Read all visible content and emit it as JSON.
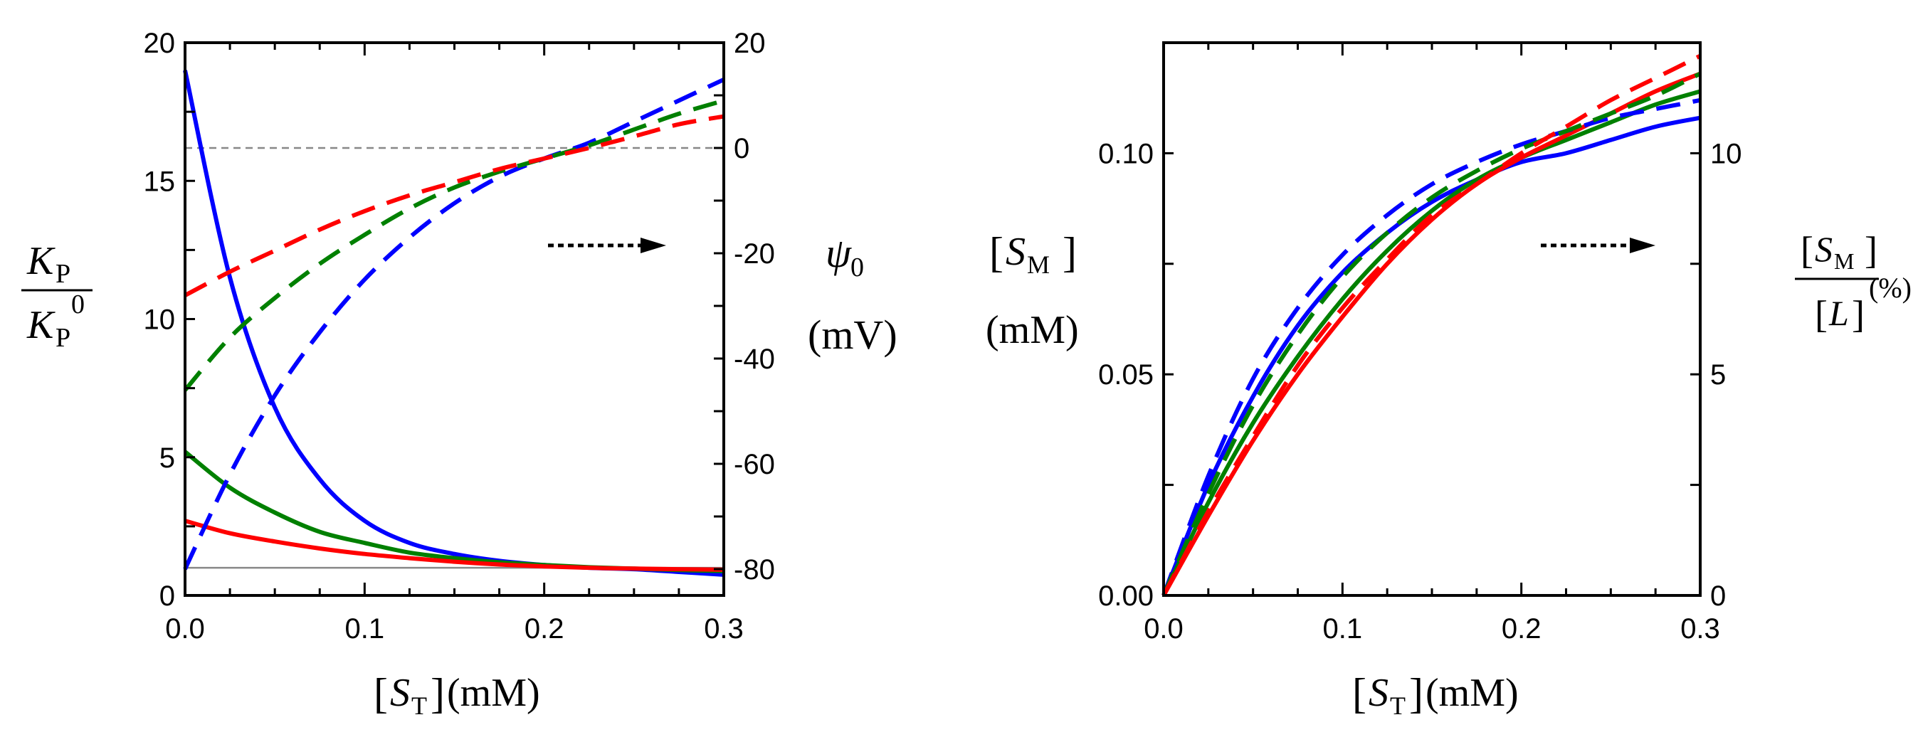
{
  "chart_data": [
    {
      "type": "line",
      "xlim": [
        0,
        0.3
      ],
      "ylim": [
        0,
        20
      ],
      "y2lim": [
        -85,
        20
      ],
      "x_ticks": [
        "0.0",
        "0.1",
        "0.2",
        "0.3"
      ],
      "y_ticks": [
        "0",
        "5",
        "10",
        "15",
        "20"
      ],
      "y2_ticks": [
        "-80",
        "-60",
        "-40",
        "-20",
        "0",
        "20"
      ],
      "xlabel": {
        "open": "[",
        "sym": "S",
        "sub": "T",
        "close": "]",
        "unit": "(mM)"
      },
      "ylabel": {
        "num": "K",
        "num_sub": "P",
        "den": "K",
        "den_sub": "P",
        "den_sup": "0"
      },
      "y2label": {
        "sym": "ψ",
        "sub": "0",
        "unit": "(mV)"
      },
      "reference_lines": [
        {
          "axis": "y",
          "value": 1,
          "color": "#888888",
          "style": "solid"
        },
        {
          "axis": "y2",
          "value": 0,
          "color": "#888888",
          "style": "dashed"
        }
      ],
      "arrow": "right",
      "series": [
        {
          "axis": "y",
          "style": "solid",
          "color": "#0000ff",
          "x": [
            0,
            0.025,
            0.05,
            0.075,
            0.1,
            0.125,
            0.15,
            0.175,
            0.2,
            0.225,
            0.25,
            0.275,
            0.3
          ],
          "values": [
            19.0,
            11.5,
            6.8,
            4.2,
            2.7,
            1.9,
            1.5,
            1.25,
            1.1,
            1.0,
            0.95,
            0.85,
            0.75
          ]
        },
        {
          "axis": "y",
          "style": "solid",
          "color": "#008000",
          "x": [
            0,
            0.025,
            0.05,
            0.075,
            0.1,
            0.125,
            0.15,
            0.175,
            0.2,
            0.225,
            0.25,
            0.275,
            0.3
          ],
          "values": [
            5.2,
            3.9,
            3.0,
            2.3,
            1.9,
            1.55,
            1.35,
            1.2,
            1.1,
            1.02,
            0.97,
            0.92,
            0.88
          ]
        },
        {
          "axis": "y",
          "style": "solid",
          "color": "#ff0000",
          "x": [
            0,
            0.025,
            0.05,
            0.075,
            0.1,
            0.125,
            0.15,
            0.175,
            0.2,
            0.225,
            0.25,
            0.275,
            0.3
          ],
          "values": [
            2.7,
            2.25,
            1.95,
            1.7,
            1.5,
            1.35,
            1.22,
            1.12,
            1.05,
            1.0,
            0.97,
            0.95,
            0.93
          ]
        },
        {
          "axis": "y2",
          "style": "dashed",
          "color": "#0000ff",
          "x": [
            0,
            0.025,
            0.05,
            0.075,
            0.1,
            0.125,
            0.15,
            0.175,
            0.2,
            0.225,
            0.25,
            0.275,
            0.3
          ],
          "values": [
            -80,
            -62,
            -47,
            -35,
            -25,
            -17,
            -10.5,
            -5.5,
            -2,
            1,
            5,
            9,
            13
          ]
        },
        {
          "axis": "y2",
          "style": "dashed",
          "color": "#008000",
          "x": [
            0,
            0.025,
            0.05,
            0.075,
            0.1,
            0.125,
            0.15,
            0.175,
            0.2,
            0.225,
            0.25,
            0.275,
            0.3
          ],
          "values": [
            -46,
            -36,
            -28.5,
            -22,
            -16.5,
            -11.5,
            -7.5,
            -4.5,
            -2,
            0.5,
            3.5,
            6.5,
            9
          ]
        },
        {
          "axis": "y2",
          "style": "dashed",
          "color": "#ff0000",
          "x": [
            0,
            0.025,
            0.05,
            0.075,
            0.1,
            0.125,
            0.15,
            0.175,
            0.2,
            0.225,
            0.25,
            0.275,
            0.3
          ],
          "values": [
            -28,
            -23.5,
            -19.5,
            -15.5,
            -12,
            -9,
            -6.5,
            -4,
            -2,
            0,
            2.2,
            4.5,
            6
          ]
        }
      ]
    },
    {
      "type": "line",
      "xlim": [
        0,
        0.3
      ],
      "ylim": [
        0,
        0.125
      ],
      "y2lim": [
        0,
        12.5
      ],
      "x_ticks": [
        "0.0",
        "0.1",
        "0.2",
        "0.3"
      ],
      "y_ticks": [
        "0.00",
        "0.05",
        "0.10"
      ],
      "y2_ticks": [
        "0",
        "5",
        "10"
      ],
      "xlabel": {
        "open": "[",
        "sym": "S",
        "sub": "T",
        "close": "]",
        "unit": "(mM)"
      },
      "ylabel": {
        "sym": "S",
        "sub": "M",
        "unit": "(mM)"
      },
      "y2label": {
        "num": "S",
        "num_sub": "M",
        "den": "L",
        "unit": "(%)"
      },
      "arrow": "right",
      "series": [
        {
          "axis": "y",
          "style": "solid",
          "color": "#0000ff",
          "x": [
            0,
            0.025,
            0.05,
            0.075,
            0.1,
            0.125,
            0.15,
            0.175,
            0.2,
            0.225,
            0.25,
            0.275,
            0.3
          ],
          "values": [
            0,
            0.025,
            0.045,
            0.061,
            0.073,
            0.082,
            0.089,
            0.094,
            0.098,
            0.1,
            0.103,
            0.106,
            0.108
          ]
        },
        {
          "axis": "y",
          "style": "solid",
          "color": "#008000",
          "x": [
            0,
            0.025,
            0.05,
            0.075,
            0.1,
            0.125,
            0.15,
            0.175,
            0.2,
            0.225,
            0.25,
            0.275,
            0.3
          ],
          "values": [
            0,
            0.021,
            0.039,
            0.054,
            0.067,
            0.078,
            0.087,
            0.094,
            0.099,
            0.103,
            0.107,
            0.111,
            0.114
          ]
        },
        {
          "axis": "y",
          "style": "solid",
          "color": "#ff0000",
          "x": [
            0,
            0.025,
            0.05,
            0.075,
            0.1,
            0.125,
            0.15,
            0.175,
            0.2,
            0.225,
            0.25,
            0.275,
            0.3
          ],
          "values": [
            0,
            0.018,
            0.035,
            0.05,
            0.063,
            0.075,
            0.085,
            0.093,
            0.099,
            0.104,
            0.109,
            0.114,
            0.118
          ]
        },
        {
          "axis": "y2",
          "style": "dashed",
          "color": "#0000ff",
          "x": [
            0,
            0.025,
            0.05,
            0.075,
            0.1,
            0.125,
            0.15,
            0.175,
            0.2,
            0.225,
            0.25,
            0.275,
            0.3
          ],
          "values": [
            0,
            2.7,
            4.9,
            6.5,
            7.7,
            8.6,
            9.3,
            9.8,
            10.2,
            10.5,
            10.8,
            11.0,
            11.2
          ]
        },
        {
          "axis": "y2",
          "style": "dashed",
          "color": "#008000",
          "x": [
            0,
            0.025,
            0.05,
            0.075,
            0.1,
            0.125,
            0.15,
            0.175,
            0.2,
            0.225,
            0.25,
            0.275,
            0.3
          ],
          "values": [
            0,
            2.3,
            4.3,
            5.9,
            7.2,
            8.2,
            9.0,
            9.6,
            10.1,
            10.5,
            10.9,
            11.3,
            11.8
          ]
        },
        {
          "axis": "y2",
          "style": "dashed",
          "color": "#ff0000",
          "x": [
            0,
            0.025,
            0.05,
            0.075,
            0.1,
            0.125,
            0.15,
            0.175,
            0.2,
            0.225,
            0.25,
            0.275,
            0.3
          ],
          "values": [
            0,
            1.9,
            3.6,
            5.2,
            6.5,
            7.6,
            8.6,
            9.3,
            10.0,
            10.6,
            11.2,
            11.7,
            12.2
          ]
        }
      ]
    }
  ]
}
